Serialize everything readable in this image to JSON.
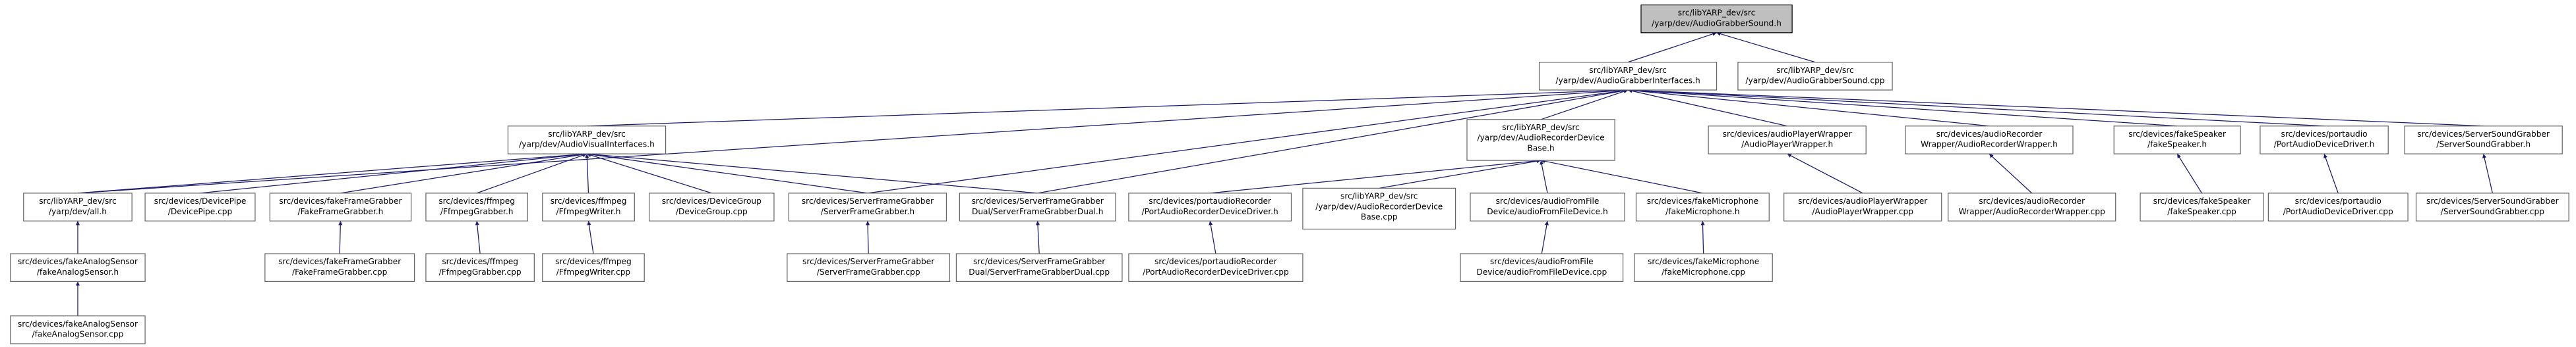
{
  "nodes": [
    {
      "lines": [
        "src/libYARP_dev/src",
        "/yarp/dev/AudioGrabberSound.h"
      ]
    },
    {
      "lines": [
        "src/libYARP_dev/src",
        "/yarp/dev/AudioGrabberInterfaces.h"
      ]
    },
    {
      "lines": [
        "src/libYARP_dev/src",
        "/yarp/dev/AudioGrabberSound.cpp"
      ]
    },
    {
      "lines": [
        "src/libYARP_dev/src",
        "/yarp/dev/AudioVisualInterfaces.h"
      ]
    },
    {
      "lines": [
        "src/libYARP_dev/src",
        "/yarp/dev/AudioRecorderDevice",
        "Base.h"
      ]
    },
    {
      "lines": [
        "src/devices/audioPlayerWrapper",
        "/AudioPlayerWrapper.h"
      ]
    },
    {
      "lines": [
        "src/devices/audioRecorder",
        "Wrapper/AudioRecorderWrapper.h"
      ]
    },
    {
      "lines": [
        "src/devices/fakeSpeaker",
        "/fakeSpeaker.h"
      ]
    },
    {
      "lines": [
        "src/devices/portaudio",
        "/PortAudioDeviceDriver.h"
      ]
    },
    {
      "lines": [
        "src/devices/ServerSoundGrabber",
        "/ServerSoundGrabber.h"
      ]
    },
    {
      "lines": [
        "src/libYARP_dev/src",
        "/yarp/dev/all.h"
      ]
    },
    {
      "lines": [
        "src/devices/DevicePipe",
        "/DevicePipe.cpp"
      ]
    },
    {
      "lines": [
        "src/devices/fakeFrameGrabber",
        "/FakeFrameGrabber.h"
      ]
    },
    {
      "lines": [
        "src/devices/ffmpeg",
        "/FfmpegGrabber.h"
      ]
    },
    {
      "lines": [
        "src/devices/ffmpeg",
        "/FfmpegWriter.h"
      ]
    },
    {
      "lines": [
        "src/devices/DeviceGroup",
        "/DeviceGroup.cpp"
      ]
    },
    {
      "lines": [
        "src/devices/ServerFrameGrabber",
        "/ServerFrameGrabber.h"
      ]
    },
    {
      "lines": [
        "src/devices/ServerFrameGrabber",
        "Dual/ServerFrameGrabberDual.h"
      ]
    },
    {
      "lines": [
        "src/devices/portaudioRecorder",
        "/PortAudioRecorderDeviceDriver.h"
      ]
    },
    {
      "lines": [
        "src/libYARP_dev/src",
        "/yarp/dev/AudioRecorderDevice",
        "Base.cpp"
      ]
    },
    {
      "lines": [
        "src/devices/audioFromFile",
        "Device/audioFromFileDevice.h"
      ]
    },
    {
      "lines": [
        "src/devices/fakeMicrophone",
        "/fakeMicrophone.h"
      ]
    },
    {
      "lines": [
        "src/devices/audioPlayerWrapper",
        "/AudioPlayerWrapper.cpp"
      ]
    },
    {
      "lines": [
        "src/devices/audioRecorder",
        "Wrapper/AudioRecorderWrapper.cpp"
      ]
    },
    {
      "lines": [
        "src/devices/fakeSpeaker",
        "/fakeSpeaker.cpp"
      ]
    },
    {
      "lines": [
        "src/devices/portaudio",
        "/PortAudioDeviceDriver.cpp"
      ]
    },
    {
      "lines": [
        "src/devices/ServerSoundGrabber",
        "/ServerSoundGrabber.cpp"
      ]
    },
    {
      "lines": [
        "src/devices/fakeAnalogSensor",
        "/fakeAnalogSensor.h"
      ]
    },
    {
      "lines": [
        "src/devices/fakeFrameGrabber",
        "/FakeFrameGrabber.cpp"
      ]
    },
    {
      "lines": [
        "src/devices/ffmpeg",
        "/FfmpegGrabber.cpp"
      ]
    },
    {
      "lines": [
        "src/devices/ffmpeg",
        "/FfmpegWriter.cpp"
      ]
    },
    {
      "lines": [
        "src/devices/ServerFrameGrabber",
        "/ServerFrameGrabber.cpp"
      ]
    },
    {
      "lines": [
        "src/devices/ServerFrameGrabber",
        "Dual/ServerFrameGrabberDual.cpp"
      ]
    },
    {
      "lines": [
        "src/devices/portaudioRecorder",
        "/PortAudioRecorderDeviceDriver.cpp"
      ]
    },
    {
      "lines": [
        "src/devices/audioFromFile",
        "Device/audioFromFileDevice.cpp"
      ]
    },
    {
      "lines": [
        "src/devices/fakeMicrophone",
        "/fakeMicrophone.cpp"
      ]
    },
    {
      "lines": [
        "src/devices/fakeAnalogSensor",
        "/fakeAnalogSensor.cpp"
      ]
    }
  ]
}
